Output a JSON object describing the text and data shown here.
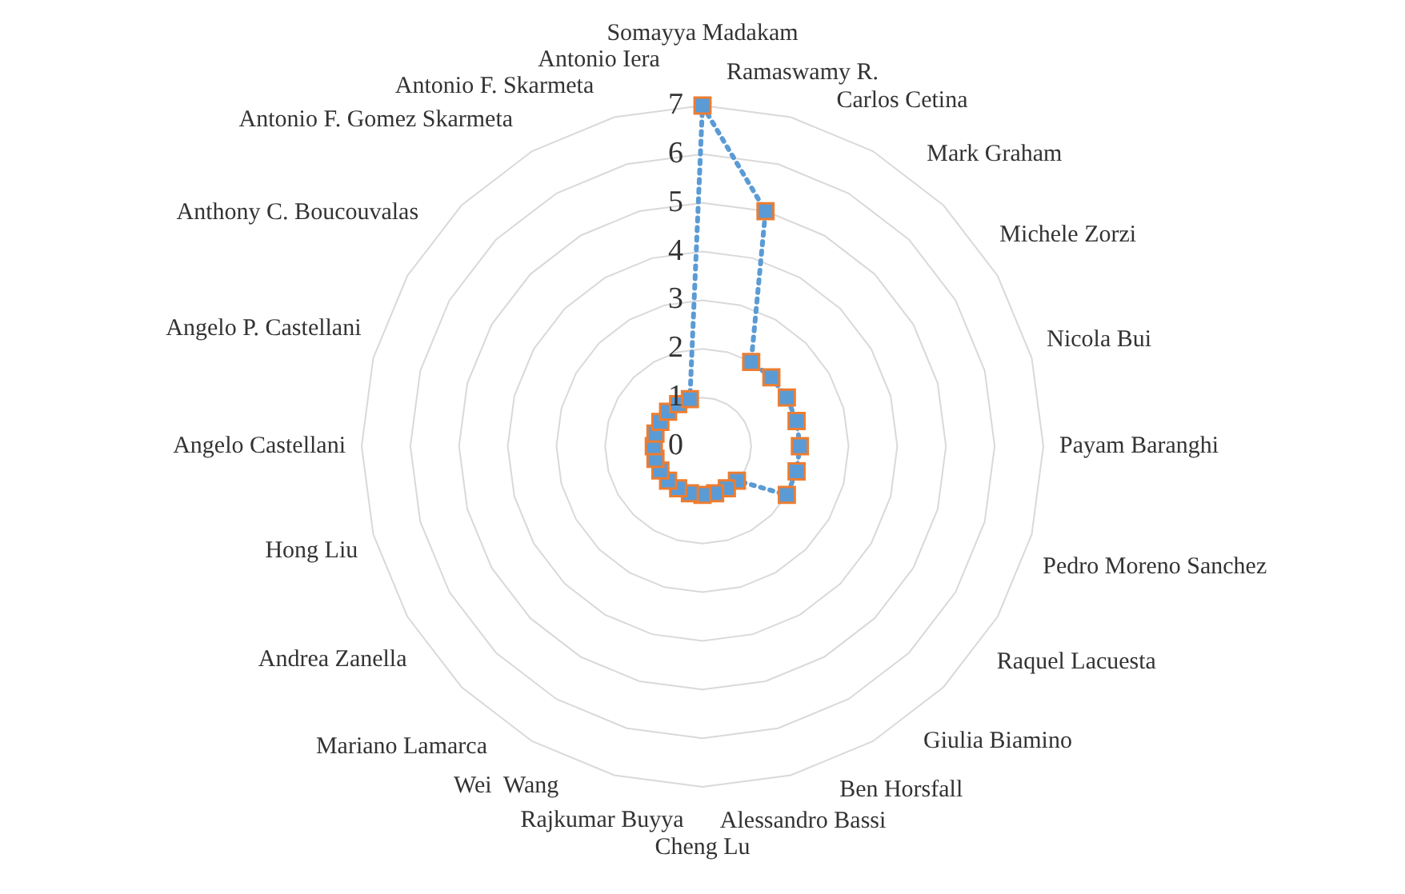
{
  "chart_data": {
    "type": "radar",
    "categories": [
      "Somayya Madakam",
      "Ramaswamy R.",
      "Carlos Cetina",
      "Mark Graham",
      "Michele Zorzi",
      "Nicola Bui",
      "Payam Baranghi",
      "Pedro Moreno Sanchez",
      "Raquel Lacuesta",
      "Giulia Biamino",
      "Ben Horsfall",
      "Alessandro Bassi",
      "Cheng Lu",
      "Rajkumar Buyya",
      "Wei  Wang",
      "Mariano Lamarca",
      "Andrea Zanella",
      "Hong Liu",
      "Angelo Castellani",
      "Angelo P. Castellani",
      "Anthony C. Boucouvalas",
      "Antonio F. Gomez Skarmeta",
      "Antonio F. Skarmeta",
      "Antonio Iera"
    ],
    "series": [
      {
        "color": "#5b9bd5",
        "values": [
          7,
          5,
          2,
          2,
          2,
          2,
          2,
          2,
          2,
          1,
          1,
          1,
          1,
          1,
          1,
          1,
          1,
          1,
          1,
          1,
          1,
          1,
          1,
          1
        ]
      }
    ],
    "ylim": [
      0,
      7
    ],
    "yticks": [
      0,
      1,
      2,
      3,
      4,
      5,
      6,
      7
    ],
    "grid": true,
    "legend": false,
    "marker": "square",
    "line_style": "dotted"
  }
}
